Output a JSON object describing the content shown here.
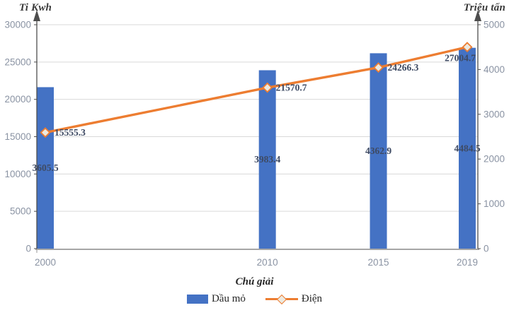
{
  "chart_data": {
    "type": "bar+line",
    "categories": [
      "2000",
      "2010",
      "2015",
      "2019"
    ],
    "x_values": [
      2000,
      2010,
      2015,
      2019
    ],
    "series": [
      {
        "name": "Dầu mỏ",
        "type": "bar",
        "axis": "right",
        "color": "#4472C4",
        "values": [
          3605.5,
          3983.4,
          4362.9,
          4484.5
        ],
        "labels": [
          "3605.5",
          "3983.4",
          "4362.9",
          "4484.5"
        ]
      },
      {
        "name": "Điện",
        "type": "line",
        "axis": "left",
        "color": "#ED7D31",
        "marker": "diamond",
        "marker_fill": "#EDE9DF",
        "values": [
          15555.3,
          21570.7,
          24266.3,
          27004.7
        ],
        "labels": [
          "15555.3",
          "21570.7",
          "24266.3",
          "27004.7"
        ]
      }
    ],
    "y_left": {
      "title": "Ti Kwh",
      "min": 0,
      "max": 30000,
      "step": 5000,
      "ticks": [
        "0",
        "5000",
        "10000",
        "15000",
        "20000",
        "25000",
        "30000"
      ]
    },
    "y_right": {
      "title": "Triệu tấn",
      "min": 0,
      "max": 5000,
      "step": 1000,
      "ticks": [
        "0",
        "1000",
        "2000",
        "3000",
        "4000",
        "5000"
      ]
    },
    "legend": {
      "title": "Chú giải",
      "position": "bottom"
    },
    "grid": true,
    "colors": {
      "grid": "#d9d9d9",
      "x_axis": "#a6a6a6",
      "y_axis": "#4d4d4d",
      "tick_label": "#8a93a3",
      "data_label": "#3e4a63"
    }
  }
}
